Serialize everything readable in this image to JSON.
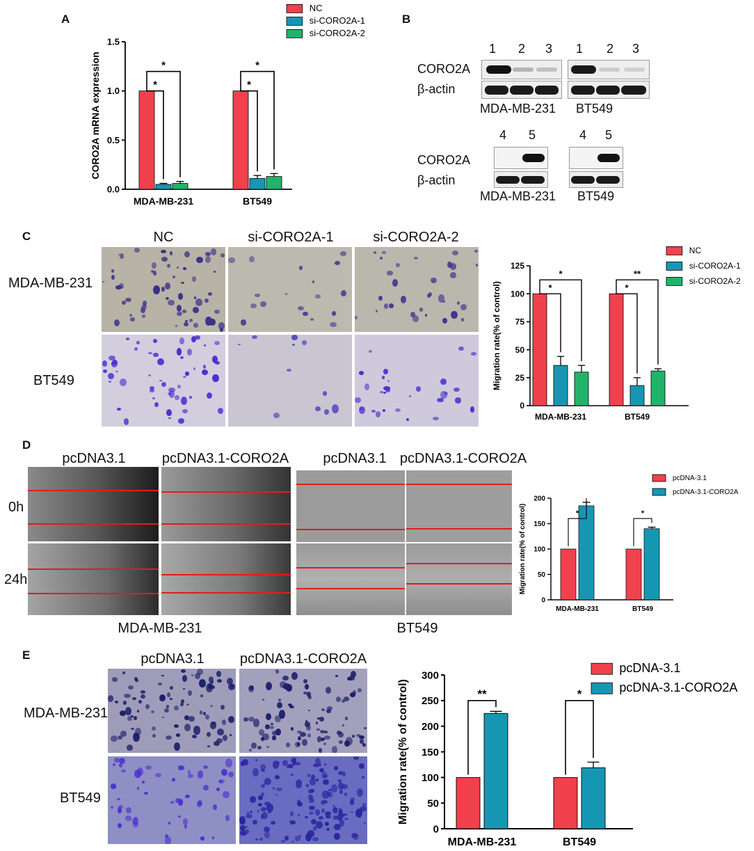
{
  "panels": {
    "A": {
      "letter": "A",
      "chart_data": {
        "type": "bar",
        "ylabel": "CORO2A mRNA expression",
        "ylim": [
          0,
          1.5
        ],
        "yticks": [
          "0.0",
          "0.5",
          "1.0",
          "1.5"
        ],
        "categories": [
          "MDA-MB-231",
          "BT549"
        ],
        "series": [
          {
            "name": "NC",
            "values": [
              1.0,
              1.0
            ],
            "errors": [
              0,
              0
            ]
          },
          {
            "name": "si-CORO2A-1",
            "values": [
              0.05,
              0.11
            ],
            "errors": [
              0.01,
              0.03
            ]
          },
          {
            "name": "si-CORO2A-2",
            "values": [
              0.06,
              0.13
            ],
            "errors": [
              0.02,
              0.03
            ]
          }
        ],
        "significance": [
          {
            "group": 0,
            "from": 0,
            "to": 1,
            "label": "*"
          },
          {
            "group": 0,
            "from": 0,
            "to": 2,
            "label": "*"
          },
          {
            "group": 1,
            "from": 0,
            "to": 1,
            "label": "*"
          },
          {
            "group": 1,
            "from": 0,
            "to": 2,
            "label": "*"
          }
        ],
        "legend": [
          "NC",
          "si-CORO2A-1",
          "si-CORO2A-2"
        ],
        "colors": [
          "#f0414d",
          "#1597b4",
          "#22b36a"
        ]
      }
    },
    "B": {
      "letter": "B",
      "top": {
        "lane_numbers_left": [
          "1",
          "2",
          "3"
        ],
        "lane_numbers_right": [
          "1",
          "2",
          "3"
        ],
        "row_labels": [
          "CORO2A",
          "β-actin"
        ],
        "cell_labels": [
          "MDA-MB-231",
          "BT549"
        ]
      },
      "bottom": {
        "lane_numbers_left": [
          "4",
          "5"
        ],
        "lane_numbers_right": [
          "4",
          "5"
        ],
        "row_labels": [
          "CORO2A",
          "β-actin"
        ],
        "cell_labels": [
          "MDA-MB-231",
          "BT549"
        ]
      }
    },
    "C": {
      "letter": "C",
      "col_labels": [
        "NC",
        "si-CORO2A-1",
        "si-CORO2A-2"
      ],
      "row_labels": [
        "MDA-MB-231",
        "BT549"
      ],
      "chart_data": {
        "type": "bar",
        "ylabel": "Migration rate(% of control)",
        "ylim": [
          0,
          125
        ],
        "yticks": [
          "0",
          "25",
          "50",
          "75",
          "100",
          "125"
        ],
        "categories": [
          "MDA-MB-231",
          "BT549"
        ],
        "series": [
          {
            "name": "NC",
            "values": [
              100,
              100
            ],
            "errors": [
              0,
              0
            ]
          },
          {
            "name": "si-CORO2A-1",
            "values": [
              36,
              18
            ],
            "errors": [
              8,
              7
            ]
          },
          {
            "name": "si-CORO2A-2",
            "values": [
              30,
              31
            ],
            "errors": [
              6,
              2
            ]
          }
        ],
        "significance": [
          {
            "group": 0,
            "from": 0,
            "to": 1,
            "label": "*"
          },
          {
            "group": 0,
            "from": 0,
            "to": 2,
            "label": "*"
          },
          {
            "group": 1,
            "from": 0,
            "to": 1,
            "label": "*"
          },
          {
            "group": 1,
            "from": 0,
            "to": 2,
            "label": "**"
          }
        ],
        "legend": [
          "NC",
          "si-CORO2A-1",
          "si-CORO2A-2"
        ],
        "colors": [
          "#f0414d",
          "#1597b4",
          "#22b36a"
        ]
      }
    },
    "D": {
      "letter": "D",
      "col_labels": [
        "pcDNA3.1",
        "pcDNA3.1-CORO2A",
        "pcDNA3.1",
        "pcDNA3.1-CORO2A"
      ],
      "row_labels": [
        "0h",
        "24h"
      ],
      "cell_labels": [
        "MDA-MB-231",
        "BT549"
      ],
      "chart_data": {
        "type": "bar",
        "ylabel": "Migration rate(% of control)",
        "ylim": [
          0,
          200
        ],
        "yticks": [
          "0",
          "50",
          "100",
          "150",
          "200"
        ],
        "categories": [
          "MDA-MB-231",
          "BT549"
        ],
        "series": [
          {
            "name": "pcDNA-3.1",
            "values": [
              100,
              100
            ],
            "errors": [
              0,
              0
            ]
          },
          {
            "name": "pcDNA-3.1-CORO2A",
            "values": [
              185,
              140
            ],
            "errors": [
              7,
              3
            ]
          }
        ],
        "significance": [
          {
            "group": 0,
            "from": 0,
            "to": 1,
            "label": "*"
          },
          {
            "group": 1,
            "from": 0,
            "to": 1,
            "label": "*"
          }
        ],
        "legend": [
          "pcDNA-3.1",
          "pcDNA-3.1-CORO2A"
        ],
        "colors": [
          "#f0414d",
          "#1597b4"
        ]
      }
    },
    "E": {
      "letter": "E",
      "col_labels": [
        "pcDNA3.1",
        "pcDNA3.1-CORO2A"
      ],
      "row_labels": [
        "MDA-MB-231",
        "BT549"
      ],
      "chart_data": {
        "type": "bar",
        "ylabel": "Migration rate(% of control)",
        "ylim": [
          0,
          300
        ],
        "yticks": [
          "0",
          "50",
          "100",
          "150",
          "200",
          "250",
          "300"
        ],
        "categories": [
          "MDA-MB-231",
          "BT549"
        ],
        "series": [
          {
            "name": "pcDNA-3.1",
            "values": [
              100,
              100
            ],
            "errors": [
              0,
              0
            ]
          },
          {
            "name": "pcDNA-3.1-CORO2A",
            "values": [
              225,
              119
            ],
            "errors": [
              4,
              11
            ]
          }
        ],
        "significance": [
          {
            "group": 0,
            "from": 0,
            "to": 1,
            "label": "**"
          },
          {
            "group": 1,
            "from": 0,
            "to": 1,
            "label": "*"
          }
        ],
        "legend": [
          "pcDNA-3.1",
          "pcDNA-3.1-CORO2A"
        ],
        "colors": [
          "#f0414d",
          "#1597b4"
        ]
      }
    }
  }
}
